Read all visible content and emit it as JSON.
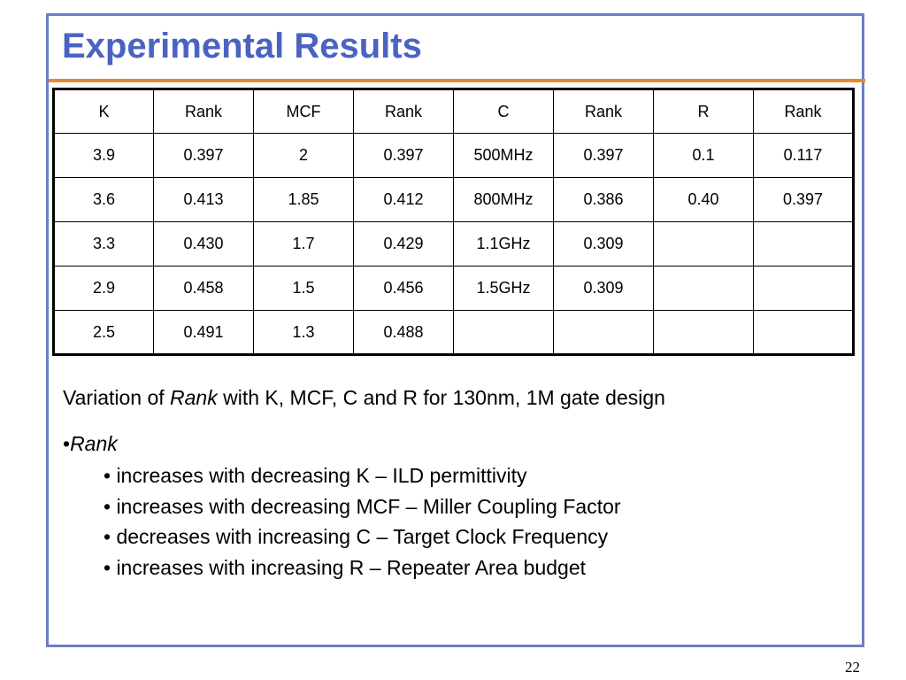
{
  "slide": {
    "title": "Experimental Results",
    "page_number": "22",
    "colors": {
      "frame": "#6c7fc4",
      "title": "#4a63c3",
      "rule": "#e88a2c"
    }
  },
  "table": {
    "headers": [
      "K",
      "Rank",
      "MCF",
      "Rank",
      "C",
      "Rank",
      "R",
      "Rank"
    ],
    "rows": [
      [
        "3.9",
        "0.397",
        "2",
        "0.397",
        "500MHz",
        "0.397",
        "0.1",
        "0.117"
      ],
      [
        "3.6",
        "0.413",
        "1.85",
        "0.412",
        "800MHz",
        "0.386",
        "0.40",
        "0.397"
      ],
      [
        "3.3",
        "0.430",
        "1.7",
        "0.429",
        "1.1GHz",
        "0.309",
        "",
        ""
      ],
      [
        "2.9",
        "0.458",
        "1.5",
        "0.456",
        "1.5GHz",
        "0.309",
        "",
        ""
      ],
      [
        "2.5",
        "0.491",
        "1.3",
        "0.488",
        "",
        "",
        "",
        ""
      ]
    ]
  },
  "caption": {
    "prefix": "Variation of ",
    "emphasis": "Rank",
    "suffix": " with K, MCF, C and R for 130nm, 1M gate design"
  },
  "bullets": {
    "main_marker": "•",
    "main_label": "Rank",
    "items": [
      "• increases with decreasing K – ILD permittivity",
      "• increases with decreasing MCF – Miller Coupling Factor",
      "• decreases with increasing C – Target Clock Frequency",
      "• increases with increasing R – Repeater Area budget"
    ]
  }
}
